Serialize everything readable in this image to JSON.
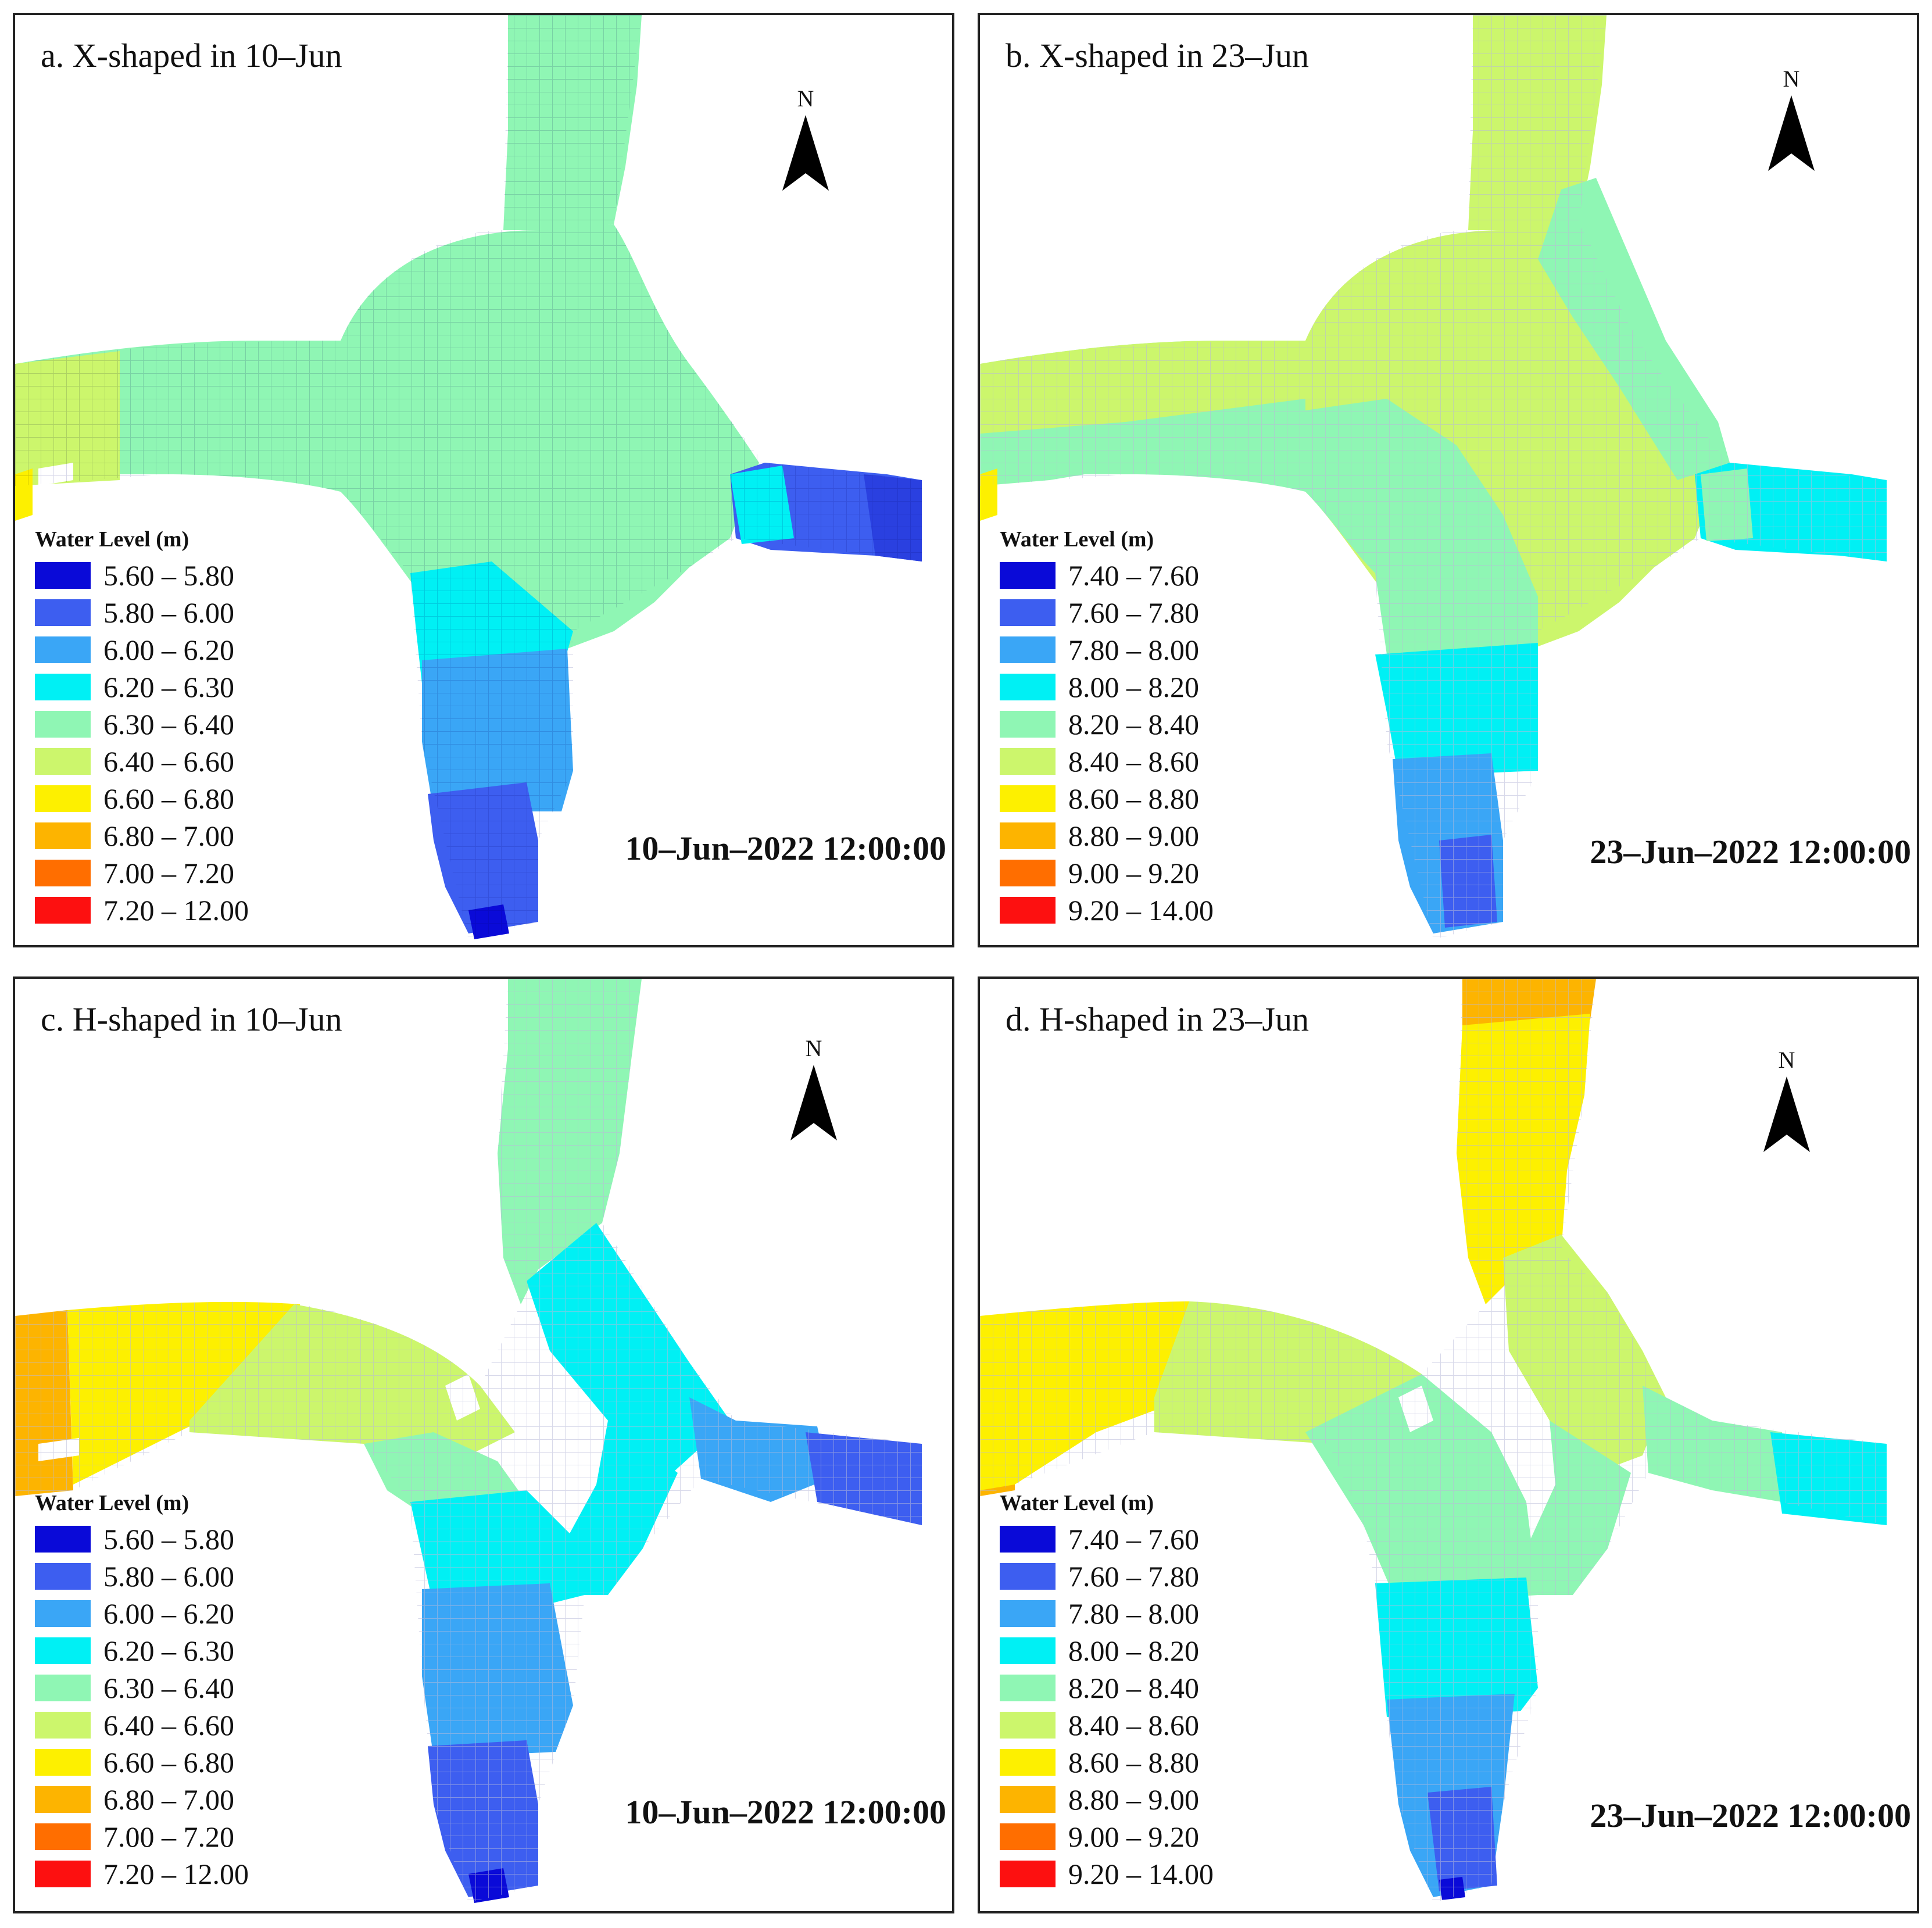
{
  "legend_title": "Water Level (m)",
  "north_label": "N",
  "colors": [
    "#0a0ad8",
    "#3d5ef0",
    "#3aa6f6",
    "#00f0f4",
    "#8ff6b4",
    "#ccf66c",
    "#fdf000",
    "#fdb400",
    "#ff6e00",
    "#fd1010"
  ],
  "panels": [
    {
      "title": "a. X-shaped in 10–Jun",
      "timestamp": "10–Jun–2022 12:00:00",
      "legend": [
        "5.60 – 5.80",
        "5.80 – 6.00",
        "6.00 – 6.20",
        "6.20 – 6.30",
        "6.30 – 6.40",
        "6.40 – 6.60",
        "6.60 – 6.80",
        "6.80 – 7.00",
        "7.00 – 7.20",
        "7.20 – 12.00"
      ]
    },
    {
      "title": "b. X-shaped in 23–Jun",
      "timestamp": "23–Jun–2022 12:00:00",
      "legend": [
        "7.40 – 7.60",
        "7.60 – 7.80",
        "7.80 – 8.00",
        "8.00 – 8.20",
        "8.20 – 8.40",
        "8.40 – 8.60",
        "8.60 – 8.80",
        "8.80 – 9.00",
        "9.00 – 9.20",
        "9.20 – 14.00"
      ]
    },
    {
      "title": "c. H-shaped in 10–Jun",
      "timestamp": "10–Jun–2022 12:00:00",
      "legend": [
        "5.60 – 5.80",
        "5.80 – 6.00",
        "6.00 – 6.20",
        "6.20 – 6.30",
        "6.30 – 6.40",
        "6.40 – 6.60",
        "6.60 – 6.80",
        "6.80 – 7.00",
        "7.00 – 7.20",
        "7.20 – 12.00"
      ]
    },
    {
      "title": "d. H-shaped in 23–Jun",
      "timestamp": "23–Jun–2022 12:00:00",
      "legend": [
        "7.40 – 7.60",
        "7.60 – 7.80",
        "7.80 – 8.00",
        "8.00 – 8.20",
        "8.20 – 8.40",
        "8.40 – 8.60",
        "8.60 – 8.80",
        "8.80 – 9.00",
        "9.00 – 9.20",
        "9.20 – 14.00"
      ]
    }
  ]
}
